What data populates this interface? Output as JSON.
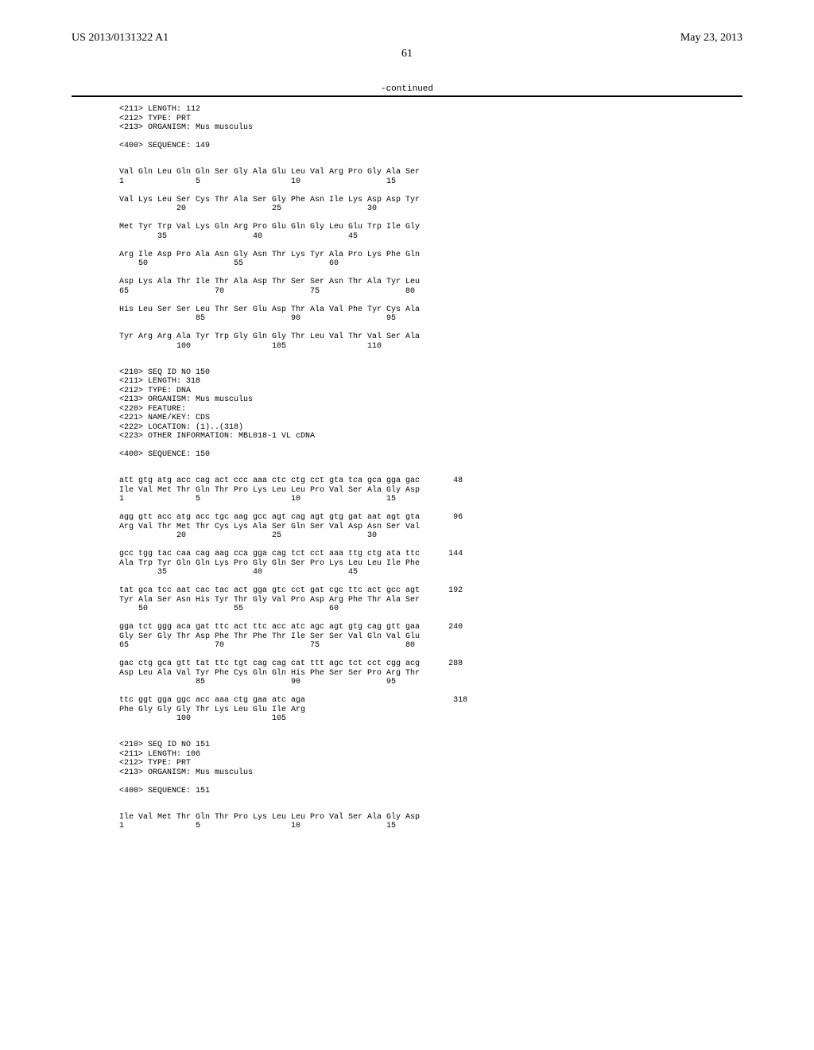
{
  "header": {
    "left": "US 2013/0131322 A1",
    "right": "May 23, 2013"
  },
  "page_number": "61",
  "continued": "-continued",
  "seq149_meta": [
    "<211> LENGTH: 112",
    "<212> TYPE: PRT",
    "<213> ORGANISM: Mus musculus",
    "",
    "<400> SEQUENCE: 149"
  ],
  "seq149_body": [
    "",
    "Val Gln Leu Gln Gln Ser Gly Ala Glu Leu Val Arg Pro Gly Ala Ser",
    "1               5                   10                  15",
    "",
    "Val Lys Leu Ser Cys Thr Ala Ser Gly Phe Asn Ile Lys Asp Asp Tyr",
    "            20                  25                  30",
    "",
    "Met Tyr Trp Val Lys Gln Arg Pro Glu Gln Gly Leu Glu Trp Ile Gly",
    "        35                  40                  45",
    "",
    "Arg Ile Asp Pro Ala Asn Gly Asn Thr Lys Tyr Ala Pro Lys Phe Gln",
    "    50                  55                  60",
    "",
    "Asp Lys Ala Thr Ile Thr Ala Asp Thr Ser Ser Asn Thr Ala Tyr Leu",
    "65                  70                  75                  80",
    "",
    "His Leu Ser Ser Leu Thr Ser Glu Asp Thr Ala Val Phe Tyr Cys Ala",
    "                85                  90                  95",
    "",
    "Tyr Arg Arg Ala Tyr Trp Gly Gln Gly Thr Leu Val Thr Val Ser Ala",
    "            100                 105                 110",
    ""
  ],
  "seq150_meta": [
    "",
    "<210> SEQ ID NO 150",
    "<211> LENGTH: 318",
    "<212> TYPE: DNA",
    "<213> ORGANISM: Mus musculus",
    "<220> FEATURE:",
    "<221> NAME/KEY: CDS",
    "<222> LOCATION: (1)..(318)",
    "<223> OTHER INFORMATION: MBL018-1 VL cDNA",
    "",
    "<400> SEQUENCE: 150"
  ],
  "seq150_body": [
    "",
    "att gtg atg acc cag act ccc aaa ctc ctg cct gta tca gca gga gac       48",
    "Ile Val Met Thr Gln Thr Pro Lys Leu Leu Pro Val Ser Ala Gly Asp",
    "1               5                   10                  15",
    "",
    "agg gtt acc atg acc tgc aag gcc agt cag agt gtg gat aat agt gta       96",
    "Arg Val Thr Met Thr Cys Lys Ala Ser Gln Ser Val Asp Asn Ser Val",
    "            20                  25                  30",
    "",
    "gcc tgg tac caa cag aag cca gga cag tct cct aaa ttg ctg ata ttc      144",
    "Ala Trp Tyr Gln Gln Lys Pro Gly Gln Ser Pro Lys Leu Leu Ile Phe",
    "        35                  40                  45",
    "",
    "tat gca tcc aat cac tac act gga gtc cct gat cgc ttc act gcc agt      192",
    "Tyr Ala Ser Asn His Tyr Thr Gly Val Pro Asp Arg Phe Thr Ala Ser",
    "    50                  55                  60",
    "",
    "gga tct ggg aca gat ttc act ttc acc atc agc agt gtg cag gtt gaa      240",
    "Gly Ser Gly Thr Asp Phe Thr Phe Thr Ile Ser Ser Val Gln Val Glu",
    "65                  70                  75                  80",
    "",
    "gac ctg gca gtt tat ttc tgt cag cag cat ttt agc tct cct cgg acg      288",
    "Asp Leu Ala Val Tyr Phe Cys Gln Gln His Phe Ser Ser Pro Arg Thr",
    "                85                  90                  95",
    "",
    "ttc ggt gga ggc acc aaa ctg gaa atc aga                               318",
    "Phe Gly Gly Gly Thr Lys Leu Glu Ile Arg",
    "            100                 105",
    ""
  ],
  "seq151_meta": [
    "",
    "<210> SEQ ID NO 151",
    "<211> LENGTH: 106",
    "<212> TYPE: PRT",
    "<213> ORGANISM: Mus musculus",
    "",
    "<400> SEQUENCE: 151"
  ],
  "seq151_body": [
    "",
    "Ile Val Met Thr Gln Thr Pro Lys Leu Leu Pro Val Ser Ala Gly Asp",
    "1               5                   10                  15"
  ]
}
